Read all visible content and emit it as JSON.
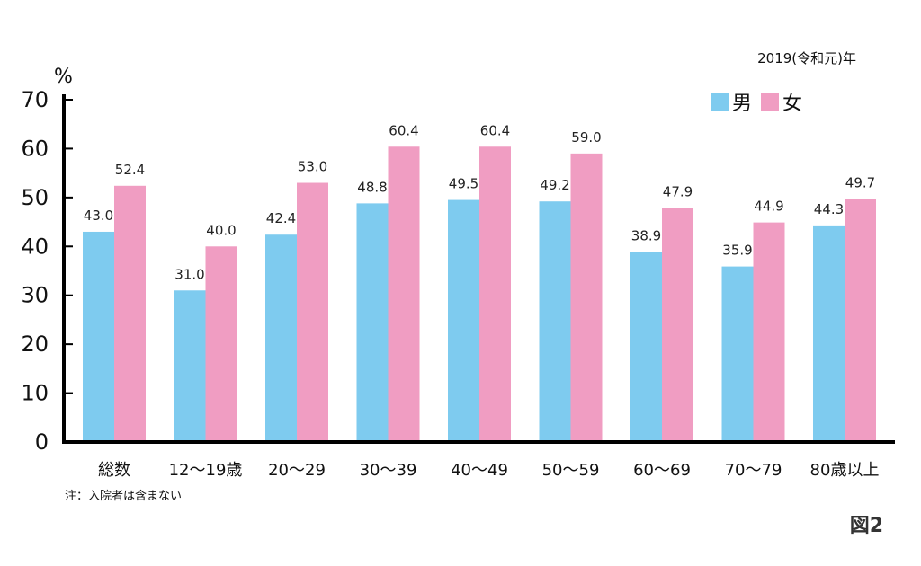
{
  "chart_data": {
    "type": "bar",
    "unit_label": "%",
    "period": "2019(令和元)年",
    "categories": [
      "総数",
      "12〜19歳",
      "20〜29",
      "30〜39",
      "40〜49",
      "50〜59",
      "60〜69",
      "70〜79",
      "80歳以上"
    ],
    "series": [
      {
        "name": "男",
        "color": "#7ecbef",
        "values": [
          43.0,
          31.0,
          42.4,
          48.8,
          49.5,
          49.2,
          38.9,
          35.9,
          44.3
        ]
      },
      {
        "name": "女",
        "color": "#f09dc2",
        "values": [
          52.4,
          40.0,
          53.0,
          60.4,
          60.4,
          59.0,
          47.9,
          44.9,
          49.7
        ]
      }
    ],
    "ylim": [
      0,
      70
    ],
    "yticks": [
      0,
      10,
      20,
      30,
      40,
      50,
      60,
      70
    ],
    "legend_position": "top-right",
    "grid": false,
    "note": "注：入院者は含まない",
    "figure_label": "図2"
  }
}
